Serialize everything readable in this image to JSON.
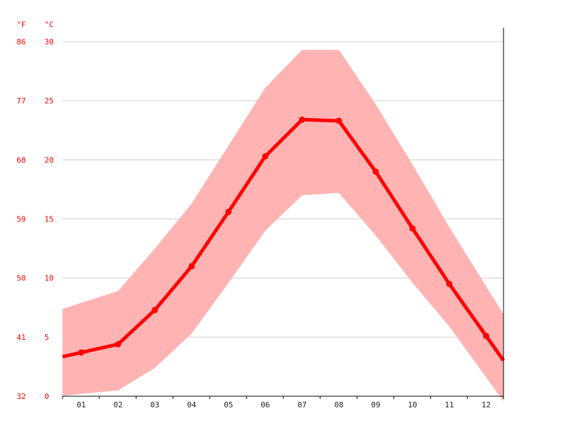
{
  "chart_data": {
    "type": "line",
    "categories": [
      "01",
      "02",
      "03",
      "04",
      "05",
      "06",
      "07",
      "08",
      "09",
      "10",
      "11",
      "12"
    ],
    "unit_f_label": "°F",
    "unit_c_label": "°C",
    "y_ticks_c": [
      "0",
      "5",
      "10",
      "15",
      "20",
      "25",
      "30"
    ],
    "y_ticks_f": [
      "32",
      "41",
      "50",
      "59",
      "68",
      "77",
      "86"
    ],
    "ylim": [
      0,
      30
    ],
    "grid": true,
    "series": [
      {
        "values": [
          3.7,
          4.4,
          7.3,
          11.0,
          15.6,
          20.3,
          23.4,
          23.3,
          19.0,
          14.2,
          9.5,
          5.1
        ]
      }
    ],
    "band_high": [
      7.9,
      8.9,
      12.5,
      16.3,
      21.2,
      26.1,
      29.3,
      29.3,
      24.7,
      19.6,
      14.3,
      9.3
    ],
    "band_low": [
      0.2,
      0.5,
      2.4,
      5.3,
      9.6,
      14.0,
      17.0,
      17.2,
      13.6,
      9.6,
      5.9,
      1.6
    ],
    "colors": {
      "line": "#ff0000",
      "band": "#ffb3b3",
      "tick_labels": "#ff0000",
      "grid": "#cccccc",
      "axis": "#000000"
    }
  }
}
